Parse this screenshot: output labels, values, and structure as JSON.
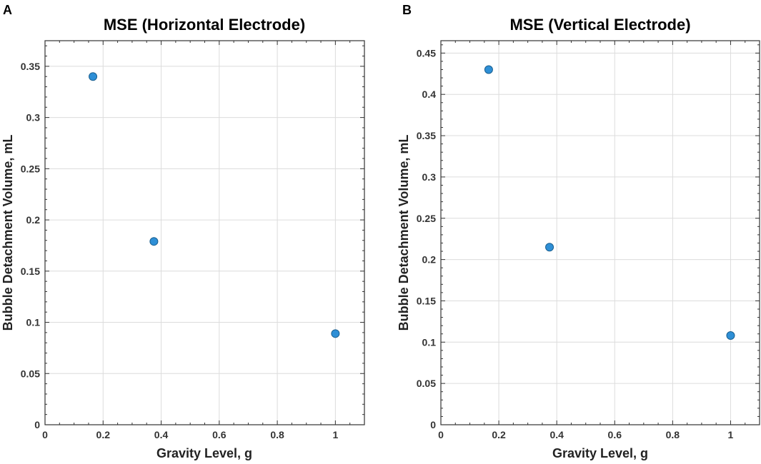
{
  "colors": {
    "marker": "#2e8fd6",
    "marker_edge": "#1a5f8f",
    "grid": "#dcdcdc",
    "axes": "#333333"
  },
  "chart_data": [
    {
      "panel_label": "A",
      "type": "scatter",
      "title": "MSE (Horizontal Electrode)",
      "xlabel": "Gravity Level, g",
      "ylabel": "Bubble Detachment Volume, mL",
      "xlim": [
        0,
        1.1
      ],
      "ylim": [
        0,
        0.375
      ],
      "xticks": [
        0,
        0.2,
        0.4,
        0.6,
        0.8,
        1
      ],
      "xtick_labels": [
        "0",
        "0.2",
        "0.4",
        "0.6",
        "0.8",
        "1"
      ],
      "yticks": [
        0,
        0.05,
        0.1,
        0.15,
        0.2,
        0.25,
        0.3,
        0.35
      ],
      "ytick_labels": [
        "0",
        "0.05",
        "0.1",
        "0.15",
        "0.2",
        "0.25",
        "0.3",
        "0.35"
      ],
      "x": [
        0.165,
        0.375,
        1.0
      ],
      "y": [
        0.34,
        0.179,
        0.089
      ],
      "grid": true
    },
    {
      "panel_label": "B",
      "type": "scatter",
      "title": "MSE (Vertical Electrode)",
      "xlabel": "Gravity Level, g",
      "ylabel": "Bubble Detachment Volume, mL",
      "xlim": [
        0,
        1.1
      ],
      "ylim": [
        0,
        0.465
      ],
      "xticks": [
        0,
        0.2,
        0.4,
        0.6,
        0.8,
        1
      ],
      "xtick_labels": [
        "0",
        "0.2",
        "0.4",
        "0.6",
        "0.8",
        "1"
      ],
      "yticks": [
        0,
        0.05,
        0.1,
        0.15,
        0.2,
        0.25,
        0.3,
        0.35,
        0.4,
        0.45
      ],
      "ytick_labels": [
        "0",
        "0.05",
        "0.1",
        "0.15",
        "0.2",
        "0.25",
        "0.3",
        "0.35",
        "0.4",
        "0.45"
      ],
      "x": [
        0.165,
        0.375,
        1.0
      ],
      "y": [
        0.43,
        0.215,
        0.108
      ],
      "grid": true
    }
  ]
}
